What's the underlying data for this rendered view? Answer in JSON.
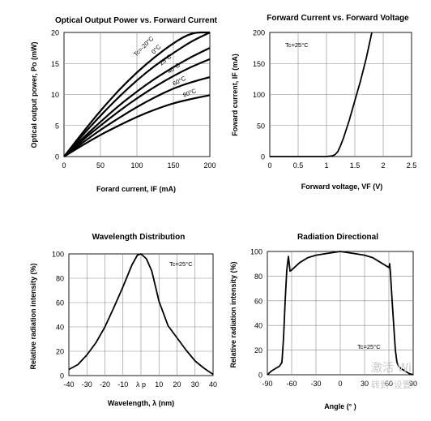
{
  "chart_data": [
    {
      "type": "line",
      "title": "Optical Output Power vs. Forward Current",
      "xlabel": "Forard current, IF (mA)",
      "ylabel": "Optical output power, Po (mW)",
      "xlim": [
        0,
        200
      ],
      "ylim": [
        0,
        20
      ],
      "xticks": [
        "0",
        "50",
        "100",
        "150",
        "200"
      ],
      "yticks": [
        "0",
        "5",
        "10",
        "15",
        "20"
      ],
      "grid": true,
      "x": [
        0,
        25,
        50,
        75,
        100,
        125,
        150,
        175,
        200
      ],
      "series": [
        {
          "name": "Tc=-20°C",
          "values": [
            0,
            3.8,
            7.4,
            10.7,
            13.6,
            16.1,
            18.3,
            20.0,
            21.5
          ]
        },
        {
          "name": "0°C",
          "values": [
            0,
            3.4,
            6.6,
            9.6,
            12.3,
            14.7,
            16.7,
            18.6,
            20.0
          ]
        },
        {
          "name": "25°C",
          "values": [
            0,
            2.9,
            5.6,
            8.2,
            10.5,
            12.6,
            14.4,
            16.1,
            17.5
          ]
        },
        {
          "name": "40°C",
          "values": [
            0,
            2.6,
            5.0,
            7.3,
            9.4,
            11.3,
            13.0,
            14.5,
            15.7
          ]
        },
        {
          "name": "60°C",
          "values": [
            0,
            2.2,
            4.3,
            6.2,
            8.0,
            9.6,
            11.0,
            12.0,
            12.8
          ]
        },
        {
          "name": "80°C",
          "values": [
            0,
            1.8,
            3.5,
            5.0,
            6.4,
            7.6,
            8.6,
            9.3,
            9.9
          ]
        }
      ]
    },
    {
      "type": "line",
      "title": "Forward Current vs. Forward Voltage",
      "xlabel": "Forward voltage, VF (V)",
      "ylabel": "Foward current, IF (mA)",
      "annotation": "Tc=25°C",
      "xlim": [
        0,
        2.5
      ],
      "ylim": [
        0,
        200
      ],
      "xticks": [
        "0",
        "0.5",
        "1",
        "1.5",
        "2",
        "2.5"
      ],
      "yticks": [
        "0",
        "50",
        "100",
        "150",
        "200"
      ],
      "grid": true,
      "x": [
        0,
        0.5,
        1.0,
        1.1,
        1.15,
        1.2,
        1.25,
        1.3,
        1.4,
        1.5,
        1.6,
        1.7,
        1.8
      ],
      "values": [
        0,
        0,
        0,
        1,
        3,
        8,
        18,
        30,
        58,
        90,
        122,
        158,
        200
      ]
    },
    {
      "type": "line",
      "title": "Wavelength Distribution",
      "xlabel": "Wavelength, λ (nm)",
      "ylabel": "Relative radiation intensity (%)",
      "annotation": "Tc=25°C",
      "xlim": [
        -40,
        40
      ],
      "ylim": [
        0,
        100
      ],
      "xticks": [
        "-40",
        "-30",
        "-20",
        "-10",
        "λ p",
        "10",
        "20",
        "30",
        "40"
      ],
      "yticks": [
        "0",
        "20",
        "40",
        "60",
        "80",
        "100"
      ],
      "grid": true,
      "x": [
        -40,
        -35,
        -30,
        -25,
        -20,
        -15,
        -10,
        -5,
        -2,
        0,
        3,
        6,
        10,
        15,
        20,
        25,
        30,
        35,
        40
      ],
      "values": [
        5,
        9,
        17,
        27,
        40,
        56,
        73,
        91,
        99,
        100,
        96,
        86,
        61,
        41,
        31,
        21,
        12,
        6,
        1
      ]
    },
    {
      "type": "line",
      "title": "Radiation Directional",
      "xlabel": "Angle (° )",
      "ylabel": "Relative radiation intensity (%)",
      "annotation": "Tc=25°C",
      "xlim": [
        -90,
        90
      ],
      "ylim": [
        0,
        100
      ],
      "xticks": [
        "-90",
        "-60",
        "-30",
        "0",
        "30",
        "60",
        "90"
      ],
      "yticks": [
        "0",
        "20",
        "40",
        "60",
        "80",
        "100"
      ],
      "grid": true,
      "x": [
        -90,
        -85,
        -80,
        -75,
        -72,
        -70,
        -68,
        -66,
        -64,
        -63,
        -62,
        -60,
        -50,
        -40,
        -30,
        -20,
        -10,
        0,
        10,
        20,
        30,
        40,
        50,
        60,
        61,
        62,
        64,
        66,
        68,
        70,
        72,
        75,
        80,
        85,
        90
      ],
      "values": [
        0,
        3,
        5,
        7,
        10,
        30,
        60,
        85,
        96,
        90,
        84,
        85,
        91,
        95,
        97,
        98,
        99,
        100,
        99,
        98,
        97,
        95,
        91,
        87,
        90,
        82,
        60,
        40,
        20,
        10,
        7,
        5,
        3,
        1,
        0
      ]
    }
  ],
  "temp_labels": [
    "Tc=-20°C",
    "0°C",
    "25°C",
    "40°C",
    "60°C",
    "80°C"
  ],
  "watermark": {
    "line1": "激活 Wi",
    "line2": "转到“设置”"
  }
}
